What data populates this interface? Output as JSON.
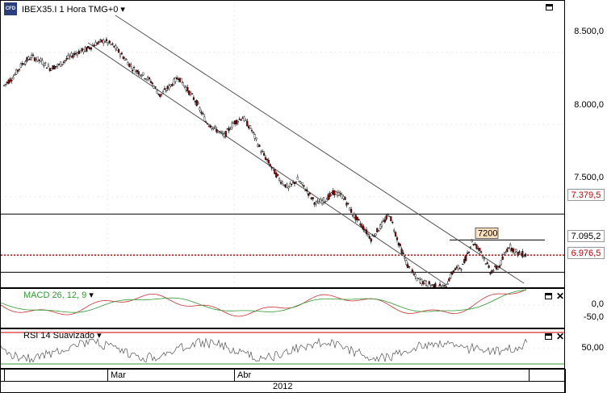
{
  "main_chart": {
    "title": "IBEX35.I 1 Hora TMG+0",
    "logo_text": "CFD",
    "y_ticks": [
      "8.500,0",
      "8.000,0",
      "7.500,0"
    ],
    "price_labels": {
      "upper_line": "7.379,5",
      "current": "7.095,2",
      "lower_line": "6.976,5"
    },
    "annotation": "7200",
    "colors": {
      "up_candle": "#000000",
      "down_candle": "#8b0000",
      "current_line": "#cc0000"
    }
  },
  "macd_panel": {
    "title": "MACD 26, 12, 9",
    "y_ticks": [
      "0,0",
      "-50,0"
    ],
    "colors": {
      "macd": "#cc3333",
      "signal": "#339933"
    }
  },
  "rsi_panel": {
    "title": "RSI 14 Suavizado",
    "y_ticks": [
      "50,00"
    ],
    "colors": {
      "rsi": "#555555",
      "level": "#cc0000",
      "level_low": "#339933"
    }
  },
  "time_axis": {
    "months": [
      "Mar",
      "Abr"
    ],
    "year": "2012"
  },
  "chart_data": {
    "type": "line",
    "title": "IBEX35.I 1 Hora TMG+0",
    "series": [
      {
        "name": "IBEX35.I",
        "values": [
          8270,
          8330,
          8420,
          8470,
          8440,
          8390,
          8410,
          8460,
          8500,
          8520,
          8560,
          8580,
          8540,
          8470,
          8390,
          8350,
          8300,
          8200,
          8260,
          8330,
          8240,
          8150,
          8020,
          7970,
          7920,
          8010,
          8050,
          7960,
          7820,
          7720,
          7620,
          7560,
          7620,
          7540,
          7450,
          7480,
          7530,
          7500,
          7380,
          7300,
          7210,
          7290,
          7380,
          7180,
          7020,
          6930,
          6900,
          6880,
          6870,
          6990,
          7020,
          7190,
          7120,
          6980,
          7020,
          7160,
          7110,
          7095
        ]
      }
    ],
    "ylim": [
      6800,
      8700
    ],
    "horizontal_levels": [
      7379.5,
      7095.2,
      6976.5,
      7200
    ]
  }
}
